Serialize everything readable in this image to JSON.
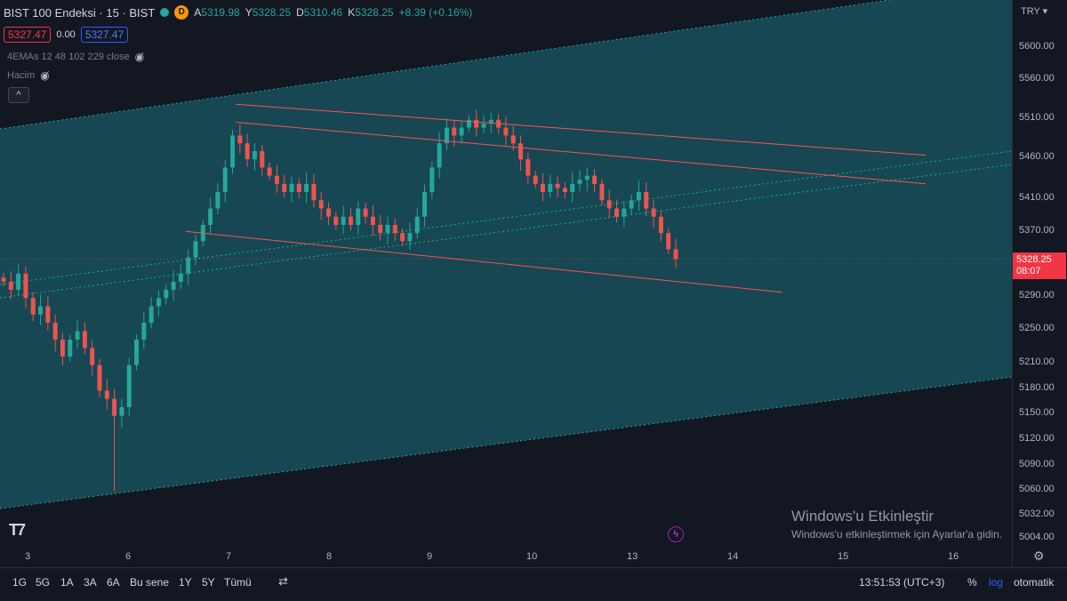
{
  "header": {
    "title": "BIST 100 Endeksi · 15 · BIST",
    "badge": "D",
    "ohlc": [
      {
        "label": "A",
        "value": "5319.98"
      },
      {
        "label": "Y",
        "value": "5328.25"
      },
      {
        "label": "D",
        "value": "5310.46"
      },
      {
        "label": "K",
        "value": "5328.25"
      }
    ],
    "change": "+8.39 (+0.16%)",
    "sell_price": "5327.47",
    "spread": "0.00",
    "buy_price": "5327.47",
    "indicator1": "4EMAs 12 48 102 229 close",
    "indicator2": "Hacim",
    "collapse_icon": "^"
  },
  "price_axis": {
    "currency": "TRY",
    "ticks": [
      "5600.00",
      "5560.00",
      "5510.00",
      "5460.00",
      "5410.00",
      "5370.00",
      "5290.00",
      "5250.00",
      "5210.00",
      "5180.00",
      "5150.00",
      "5120.00",
      "5090.00",
      "5060.00",
      "5032.00",
      "5004.00"
    ],
    "current_price": "5328.25",
    "countdown": "08:07"
  },
  "time_axis": {
    "ticks": [
      "3",
      "6",
      "7",
      "8",
      "9",
      "10",
      "13",
      "14",
      "15",
      "16"
    ]
  },
  "bottom_bar": {
    "ranges": [
      "1G",
      "5G",
      "1A",
      "3A",
      "6A",
      "Bu sene",
      "1Y",
      "5Y",
      "Tümü"
    ],
    "clock": "13:51:53 (UTC+3)",
    "percent": "%",
    "log": "log",
    "auto": "otomatik"
  },
  "watermark": {
    "line1": "Windows'u Etkinleştir",
    "line2": "Windows'u etkinleştirmek için Ayarlar'a gidin."
  },
  "colors": {
    "up": "#26a69a",
    "down": "#ef5350",
    "channel": "#f7525f",
    "fill": "#17505a",
    "dotted": "#22ab94"
  },
  "chart_data": {
    "type": "candlestick",
    "x_labels": [
      "3",
      "6",
      "7",
      "8",
      "9",
      "10",
      "13",
      "14",
      "15",
      "16"
    ],
    "ylim": [
      5004,
      5600
    ],
    "close_path": [
      5300,
      5290,
      5310,
      5280,
      5260,
      5270,
      5250,
      5230,
      5210,
      5230,
      5240,
      5220,
      5200,
      5170,
      5160,
      5140,
      5150,
      5200,
      5230,
      5250,
      5270,
      5280,
      5290,
      5300,
      5310,
      5330,
      5350,
      5370,
      5390,
      5410,
      5440,
      5480,
      5470,
      5450,
      5460,
      5440,
      5430,
      5420,
      5410,
      5420,
      5410,
      5420,
      5400,
      5390,
      5380,
      5370,
      5380,
      5370,
      5390,
      5380,
      5370,
      5360,
      5370,
      5360,
      5350,
      5360,
      5380,
      5410,
      5440,
      5470,
      5490,
      5480,
      5490,
      5500,
      5490,
      5495,
      5500,
      5490,
      5480,
      5470,
      5450,
      5430,
      5420,
      5410,
      5420,
      5415,
      5410,
      5420,
      5425,
      5430,
      5420,
      5400,
      5390,
      5380,
      5390,
      5400,
      5410,
      5390,
      5380,
      5360,
      5340,
      5328
    ],
    "last_close": 5328.25,
    "channel_lines": [
      {
        "from": [
          7.1,
          5520
        ],
        "to": [
          15.8,
          5455
        ]
      },
      {
        "from": [
          7.1,
          5497
        ],
        "to": [
          15.8,
          5420
        ]
      },
      {
        "from": [
          6.6,
          5362
        ],
        "to": [
          14.5,
          5287
        ]
      }
    ]
  }
}
